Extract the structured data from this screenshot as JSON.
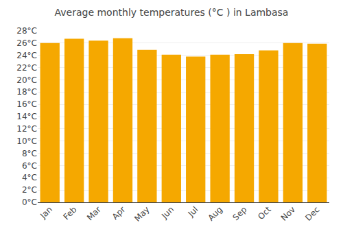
{
  "chart_data": {
    "type": "bar",
    "title": "Average monthly temperatures (°C ) in Lambasa",
    "categories": [
      "Jan",
      "Feb",
      "Mar",
      "Apr",
      "May",
      "Jun",
      "Jul",
      "Aug",
      "Sep",
      "Oct",
      "Nov",
      "Dec"
    ],
    "values": [
      26.0,
      26.7,
      26.4,
      26.8,
      24.9,
      24.1,
      23.8,
      24.1,
      24.2,
      24.8,
      26.0,
      25.9
    ],
    "color": "#F5A800",
    "ylim": [
      0,
      28
    ],
    "yticks": [
      {
        "value": 0,
        "label": "0°C"
      },
      {
        "value": 2,
        "label": "2°C"
      },
      {
        "value": 4,
        "label": "4°C"
      },
      {
        "value": 6,
        "label": "6°C"
      },
      {
        "value": 8,
        "label": "8°C"
      },
      {
        "value": 10,
        "label": "10°C"
      },
      {
        "value": 12,
        "label": "12°C"
      },
      {
        "value": 14,
        "label": "14°C"
      },
      {
        "value": 16,
        "label": "16°C"
      },
      {
        "value": 18,
        "label": "18°C"
      },
      {
        "value": 20,
        "label": "20°C"
      },
      {
        "value": 22,
        "label": "22°C"
      },
      {
        "value": 24,
        "label": "24°C"
      },
      {
        "value": 26,
        "label": "26°C"
      },
      {
        "value": 28,
        "label": "28°C"
      }
    ],
    "grid": true
  }
}
